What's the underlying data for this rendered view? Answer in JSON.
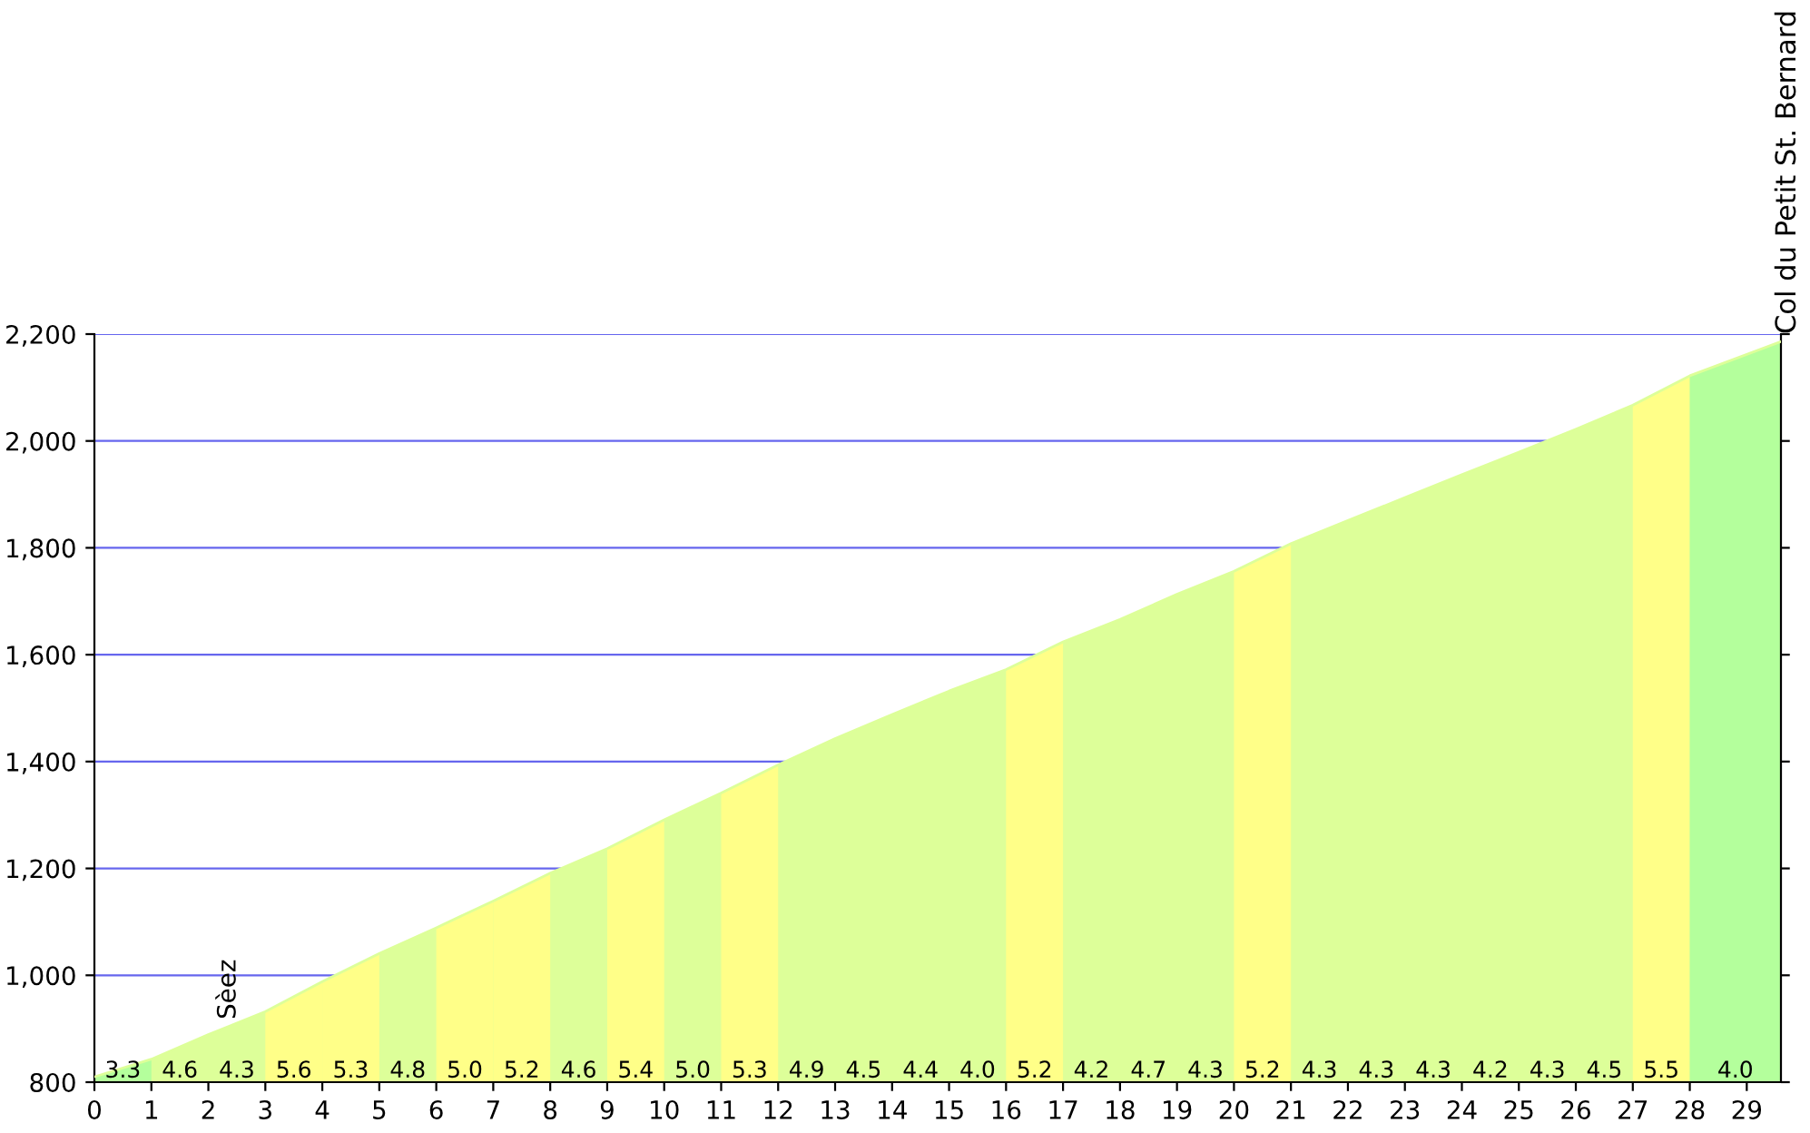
{
  "chart_data": {
    "type": "area",
    "x": [
      0,
      1,
      2,
      3,
      4,
      5,
      6,
      7,
      8,
      9,
      10,
      11,
      12,
      13,
      14,
      15,
      16,
      17,
      18,
      19,
      20,
      21,
      22,
      23,
      24,
      25,
      26,
      27,
      28,
      29.6
    ],
    "values": [
      810,
      843,
      889,
      932,
      988,
      1041,
      1089,
      1139,
      1191,
      1237,
      1291,
      1341,
      1394,
      1443,
      1488,
      1532,
      1572,
      1624,
      1666,
      1713,
      1756,
      1808,
      1851,
      1894,
      1937,
      1979,
      2022,
      2067,
      2122,
      2186
    ],
    "color": "#ddff99",
    "bands": [
      {
        "axis": "x",
        "from": 0,
        "to": 1,
        "color": "#b4ff9c"
      },
      {
        "axis": "x",
        "from": 3,
        "to": 4,
        "color": "#ffff88"
      },
      {
        "axis": "x",
        "from": 4,
        "to": 5,
        "color": "#ffff88"
      },
      {
        "axis": "x",
        "from": 6,
        "to": 7,
        "color": "#ffff88"
      },
      {
        "axis": "x",
        "from": 7,
        "to": 8,
        "color": "#ffff88"
      },
      {
        "axis": "x",
        "from": 9,
        "to": 10,
        "color": "#ffff88"
      },
      {
        "axis": "x",
        "from": 11,
        "to": 12,
        "color": "#ffff88"
      },
      {
        "axis": "x",
        "from": 16,
        "to": 17,
        "color": "#ffff88"
      },
      {
        "axis": "x",
        "from": 20,
        "to": 21,
        "color": "#ffff88"
      },
      {
        "axis": "x",
        "from": 27,
        "to": 28,
        "color": "#ffff88"
      },
      {
        "axis": "x",
        "from": 28,
        "to": 29.6,
        "color": "#b4ff9c"
      }
    ],
    "xlim": [
      0,
      29.6
    ],
    "xticks": [
      0,
      1,
      2,
      3,
      4,
      5,
      6,
      7,
      8,
      9,
      10,
      11,
      12,
      13,
      14,
      15,
      16,
      17,
      18,
      19,
      20,
      21,
      22,
      23,
      24,
      25,
      26,
      27,
      28,
      29
    ],
    "ylim": [
      800,
      2200
    ],
    "yticks": [
      {
        "value": 800,
        "label": "800"
      },
      {
        "value": 1000,
        "label": "1,000"
      },
      {
        "value": 1200,
        "label": "1,200"
      },
      {
        "value": 1400,
        "label": "1,400"
      },
      {
        "value": 1600,
        "label": "1,600"
      },
      {
        "value": 1800,
        "label": "1,800"
      },
      {
        "value": 2000,
        "label": "2,000"
      },
      {
        "value": 2200,
        "label": "2,200"
      }
    ],
    "grid": "y",
    "annotations": [
      "3.3",
      "4.6",
      "4.3",
      "5.6",
      "5.3",
      "4.8",
      "5.0",
      "5.2",
      "4.6",
      "5.4",
      "5.0",
      "5.3",
      "4.9",
      "4.5",
      "4.4",
      "4.0",
      "5.2",
      "4.2",
      "4.7",
      "4.3",
      "5.2",
      "4.3",
      "4.3",
      "4.3",
      "4.2",
      "4.3",
      "4.5",
      "5.5",
      "4.0",
      {
        "text": "Sèez",
        "x": 2,
        "y": 889
      },
      {
        "text": "Col du Petit St. Bernard",
        "x": 29.6,
        "y": 2186
      }
    ]
  }
}
